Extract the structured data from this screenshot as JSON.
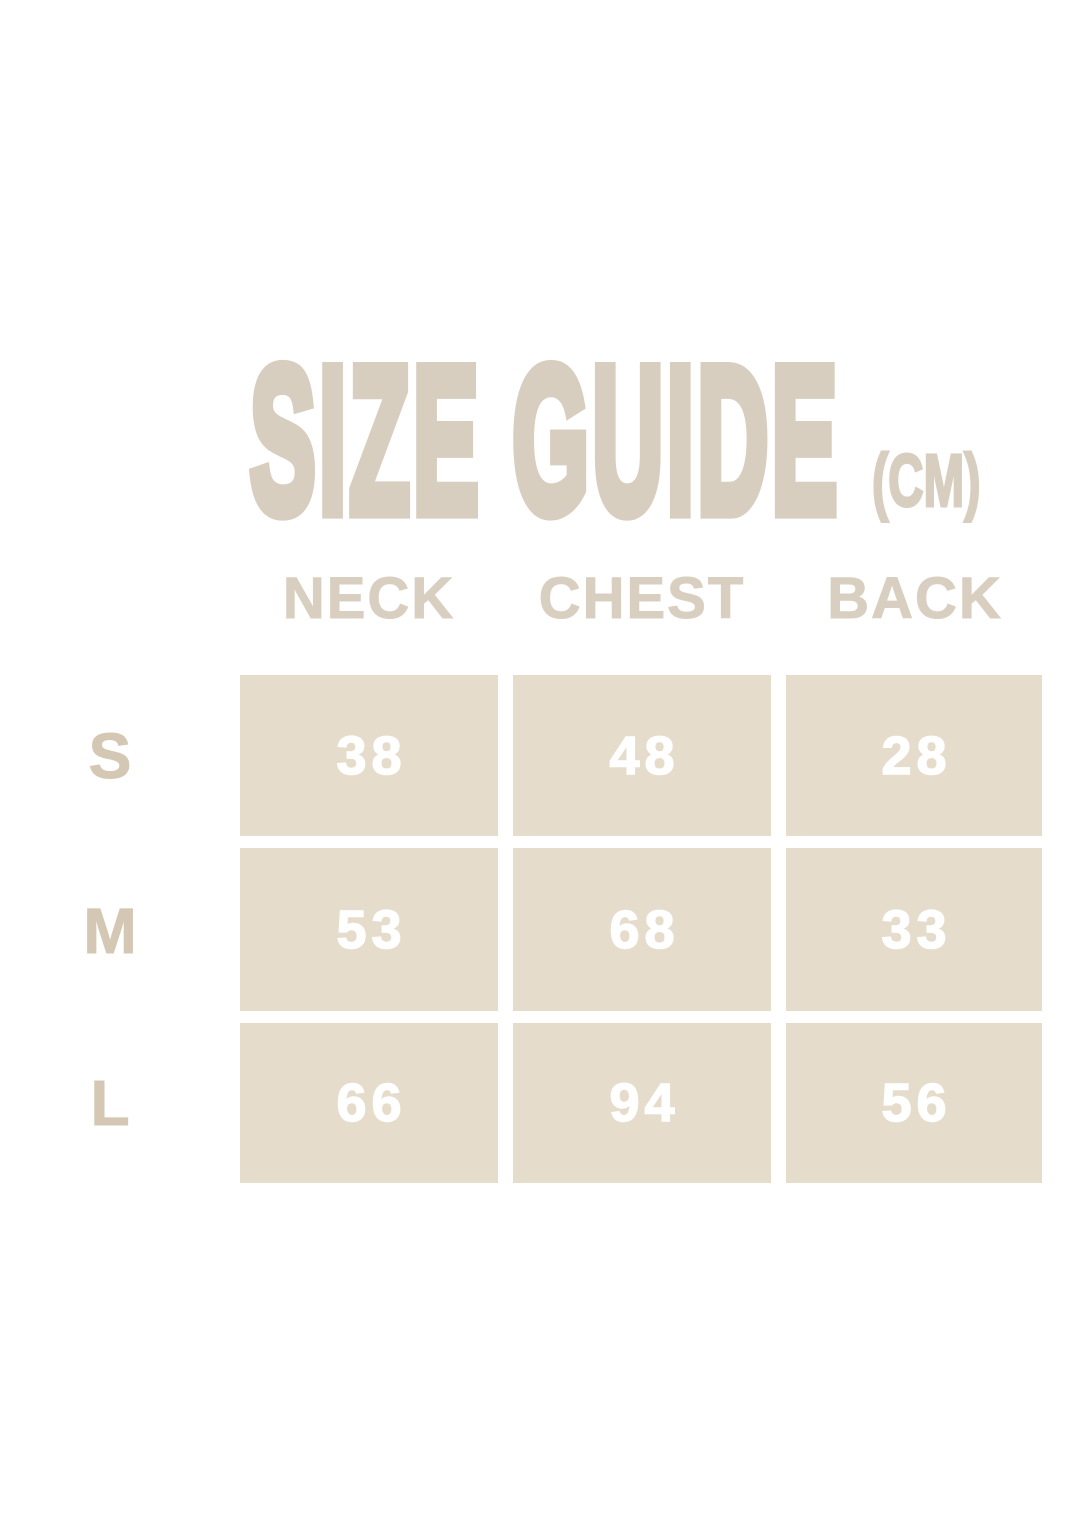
{
  "page": {
    "background": "#ffffff"
  },
  "title": {
    "text": "SIZE GUIDE",
    "unit_label": "(CM)"
  },
  "colors": {
    "title_text": "#d8cec0",
    "header_text": "#d9cfc1",
    "row_label_text": "#d4c7b3",
    "cell_background": "#e5dccb",
    "cell_value_text": "#ffffff",
    "page_background": "#ffffff"
  },
  "chart_data": {
    "type": "table",
    "title": "SIZE GUIDE",
    "unit_label": "(CM)",
    "columns": [
      "NECK",
      "CHEST",
      "BACK"
    ],
    "rows": [
      {
        "label": "S",
        "values": [
          38,
          48,
          28
        ]
      },
      {
        "label": "M",
        "values": [
          53,
          68,
          33
        ]
      },
      {
        "label": "L",
        "values": [
          66,
          94,
          56
        ]
      }
    ]
  }
}
